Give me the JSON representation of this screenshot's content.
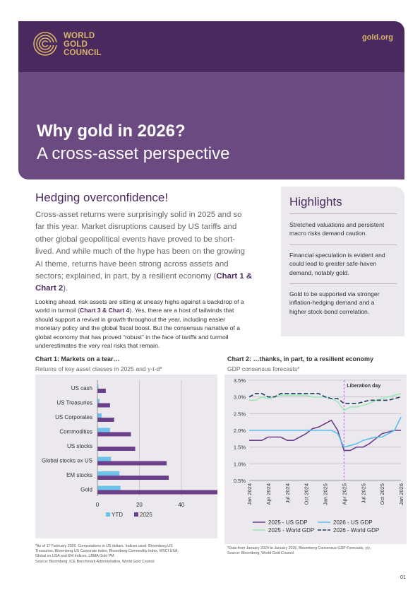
{
  "header": {
    "logo_lines": [
      "WORLD",
      "GOLD",
      "COUNCIL"
    ],
    "site": "gold.org",
    "title": "Why gold in 2026?",
    "subtitle": "A cross-asset perspective"
  },
  "colors": {
    "purple_dark": "#4a2a5e",
    "purple": "#6a4a80",
    "gold": "#d9b46a",
    "ytd": "#6cc3ea",
    "y2025": "#6b3f8a"
  },
  "section": {
    "heading": "Hedging overconfidence!",
    "lead_lines": [
      "Cross-asset returns were surprisingly solid in 2025 and so",
      "far this year. Market disruptions caused by US tariffs and",
      "other global geopolitical events have proved to be short-",
      "lived. And while much of the hype has been on the growing",
      "AI theme, returns have been strong across assets and",
      "sectors; explained, in part, by a resilient economy ("
    ],
    "lead_ref1": "Chart 1 &",
    "lead_ref2": "Chart 2",
    "lead_end": ").",
    "body_lines": [
      "Looking ahead, risk assets are sitting at uneasy highs against a backdrop of a",
      "world in turmoil ("
    ],
    "body_ref": "Chart 3 & Chart 4",
    "body_after_ref": "). Yes, there are a host of tailwinds that",
    "body_rest": [
      "should support a revival in growth throughout the year, including easier",
      "monetary policy and the global fiscal boost. But the consensus narrative of a",
      "global economy that has proved “robust” in the face of tariffs and turmoil",
      "underestimates the very real risks that remain."
    ]
  },
  "highlights": {
    "title": "Highlights",
    "items": [
      [
        "Stretched valuations and persistent",
        "macro risks demand caution."
      ],
      [
        "Financial speculation is evident and",
        "could lead to greater safe-haven",
        "demand, notably gold."
      ],
      [
        "Gold to be supported via stronger",
        "inflation-hedging demand and a",
        "higher stock-bond correlation."
      ]
    ]
  },
  "chart1": {
    "heading": "Chart 1: Markets on a tear…",
    "subheading": "Returns of key asset classes in 2025 and y-t-d*",
    "note_lines": [
      "*As of 17 February 2026. Computations in US dollars. Indices used: Bloomberg US",
      "Treasuries, Bloomberg US Corporate Index, Bloomberg Commodity Index, MSCI USA,",
      "Global ex USA and EM Indices, LBMA Gold PM.",
      "Source: Bloomberg, ICE Benchmark Administration, World Gold Council"
    ]
  },
  "chart2": {
    "heading": "Chart 2: …thanks, in part, to a resilient economy",
    "subheading": "GDP consensus forecasts*",
    "note_lines": [
      "*Data from January 2024 to January 2026, Bloomberg Consensus GDP Forecasts, y/y.",
      "Source: Bloomberg, World Gold Council"
    ]
  },
  "chart_data": [
    {
      "type": "bar",
      "orientation": "horizontal",
      "categories": [
        "US cash",
        "US Treasuries",
        "US Corporates",
        "Commodities",
        "US stocks",
        "Global stocks ex US",
        "EM stocks",
        "Gold"
      ],
      "series": [
        {
          "name": "YTD",
          "values": [
            0.5,
            1,
            2,
            6,
            0,
            6.5,
            10.5,
            11
          ]
        },
        {
          "name": "2025",
          "values": [
            4,
            6,
            8,
            16,
            18,
            33,
            34,
            67
          ]
        }
      ],
      "xlim": [
        0,
        70
      ],
      "xticks": [
        "0",
        "20",
        "40",
        "60"
      ],
      "xunit": "%",
      "legend": "bottom",
      "grid": true
    },
    {
      "type": "line",
      "x": [
        "Jan 2024",
        "Feb 2024",
        "Mar 2024",
        "Apr 2024",
        "May 2024",
        "Jun 2024",
        "Jul 2024",
        "Aug 2024",
        "Sep 2024",
        "Oct 2024",
        "Nov 2024",
        "Dec 2024",
        "Jan 2025",
        "Feb 2025",
        "Mar 2025",
        "Apr 2025",
        "May 2025",
        "Jun 2025",
        "Jul 2025",
        "Aug 2025",
        "Sep 2025",
        "Oct 2025",
        "Nov 2025",
        "Dec 2025",
        "Jan 2026"
      ],
      "xticks": [
        "Jan 2024",
        "Apr 2024",
        "Jul 2024",
        "Oct 2024",
        "Jan 2025",
        "Apr 2025",
        "Jul 2025",
        "Oct 2025",
        "Jan 2026"
      ],
      "series": [
        {
          "name": "2025 - US GDP",
          "values": [
            1.7,
            1.7,
            1.7,
            1.8,
            1.8,
            1.8,
            1.7,
            1.7,
            1.8,
            1.9,
            2.05,
            2.1,
            2.2,
            2.3,
            2.0,
            1.4,
            1.4,
            1.5,
            1.5,
            1.6,
            1.75,
            1.9,
            1.95,
            2.0,
            2.0
          ]
        },
        {
          "name": "2026 - US GDP",
          "values": [
            2.0,
            2.0,
            2.0,
            2.0,
            2.0,
            2.0,
            2.0,
            2.0,
            2.0,
            2.0,
            2.0,
            2.0,
            2.0,
            2.0,
            1.9,
            1.5,
            1.55,
            1.6,
            1.7,
            1.75,
            1.8,
            1.8,
            1.9,
            2.0,
            2.4
          ]
        },
        {
          "name": "2025 - World GDP",
          "values": [
            2.9,
            2.9,
            3.0,
            2.95,
            3.0,
            3.05,
            3.05,
            3.05,
            3.05,
            3.05,
            3.0,
            3.0,
            3.0,
            2.95,
            2.85,
            2.6,
            2.7,
            2.7,
            2.75,
            2.8,
            2.9,
            2.95,
            3.0,
            3.05,
            3.1
          ]
        },
        {
          "name": "2026 - World GDP",
          "values": [
            3.0,
            3.1,
            3.1,
            3.0,
            3.0,
            3.1,
            3.1,
            3.1,
            3.1,
            3.1,
            3.1,
            3.1,
            3.0,
            2.95,
            2.95,
            2.8,
            2.8,
            2.8,
            2.85,
            2.9,
            2.9,
            2.9,
            2.9,
            2.95,
            3.0
          ]
        }
      ],
      "series_colors": [
        "#6b3f8a",
        "#5bc0eb",
        "#9de8b8",
        "#1f3a5f"
      ],
      "series_dash": [
        false,
        false,
        false,
        true
      ],
      "ylim": [
        0.5,
        3.5
      ],
      "yticks": [
        "0.5%",
        "1.0%",
        "1.5%",
        "2.0%",
        "2.5%",
        "3.0%",
        "3.5%"
      ],
      "annotation": {
        "label": "Liberation day",
        "x": "Apr 2025"
      },
      "legend": "bottom",
      "grid": true
    }
  ],
  "page_number": "01"
}
